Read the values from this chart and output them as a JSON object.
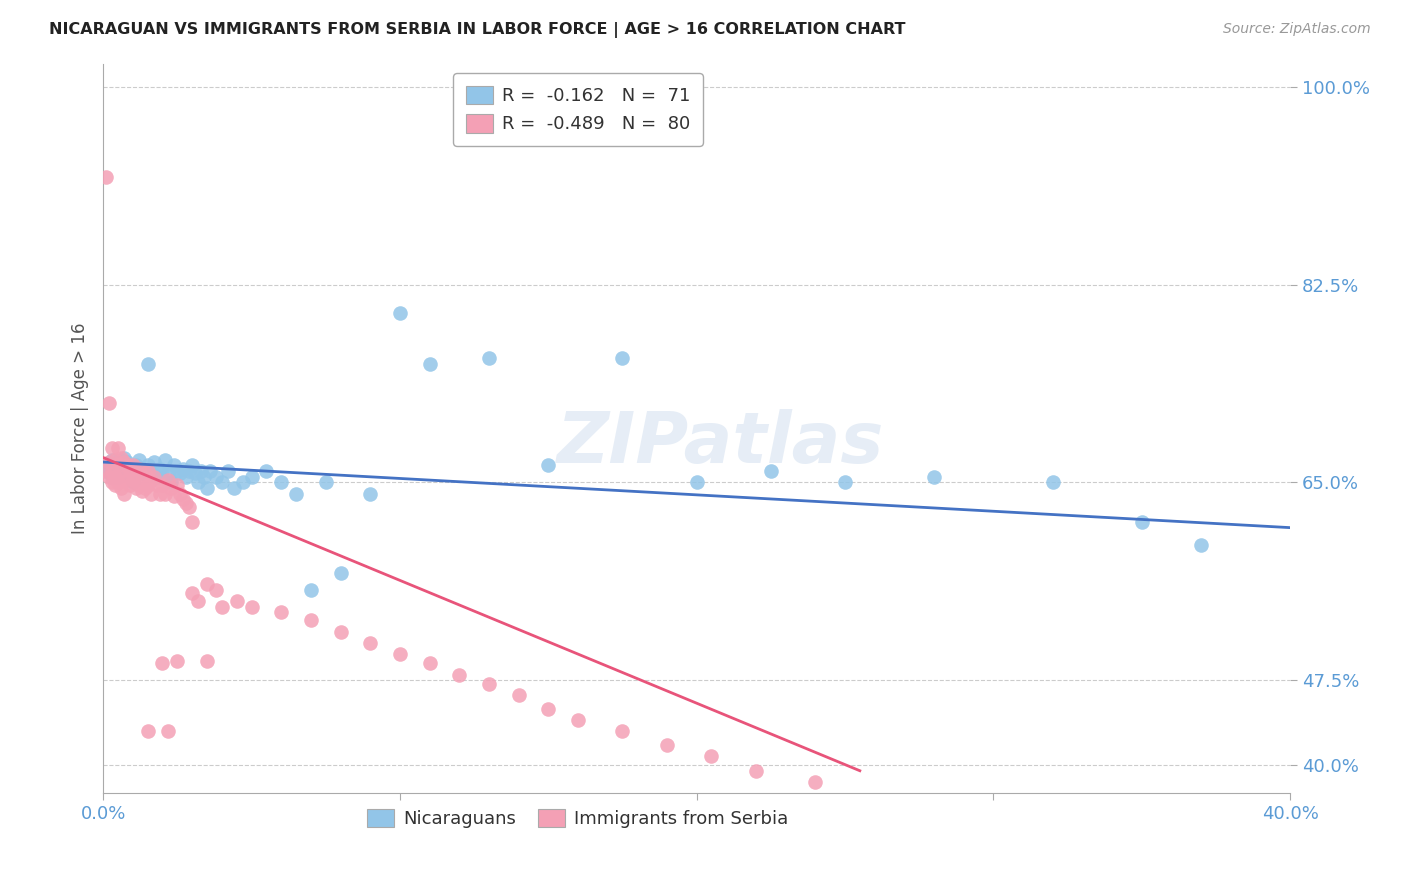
{
  "title": "NICARAGUAN VS IMMIGRANTS FROM SERBIA IN LABOR FORCE | AGE > 16 CORRELATION CHART",
  "source": "Source: ZipAtlas.com",
  "ylabel": "In Labor Force | Age > 16",
  "xlim": [
    0.0,
    0.4
  ],
  "ylim": [
    0.375,
    1.02
  ],
  "ytick_positions": [
    0.4,
    0.475,
    0.65,
    0.825,
    1.0
  ],
  "ytick_labels": [
    "40.0%",
    "47.5%",
    "65.0%",
    "82.5%",
    "100.0%"
  ],
  "xtick_positions": [
    0.0,
    0.1,
    0.2,
    0.3,
    0.4
  ],
  "xtick_labels": [
    "0.0%",
    "",
    "",
    "",
    "40.0%"
  ],
  "nic_color": "#92C5E8",
  "serbia_color": "#F4A0B5",
  "nic_line_color": "#4472C4",
  "serbia_line_color": "#E8547A",
  "grid_color": "#CCCCCC",
  "tick_color": "#5B9BD5",
  "background_color": "#FFFFFF",
  "watermark": "ZIPatlas",
  "nic_scatter_x": [
    0.001,
    0.002,
    0.002,
    0.003,
    0.003,
    0.004,
    0.004,
    0.005,
    0.005,
    0.006,
    0.006,
    0.007,
    0.007,
    0.008,
    0.008,
    0.009,
    0.01,
    0.01,
    0.011,
    0.012,
    0.012,
    0.013,
    0.014,
    0.015,
    0.015,
    0.016,
    0.017,
    0.018,
    0.019,
    0.02,
    0.021,
    0.022,
    0.023,
    0.024,
    0.025,
    0.026,
    0.027,
    0.028,
    0.029,
    0.03,
    0.031,
    0.032,
    0.033,
    0.034,
    0.035,
    0.036,
    0.038,
    0.04,
    0.042,
    0.044,
    0.047,
    0.05,
    0.055,
    0.06,
    0.065,
    0.07,
    0.075,
    0.08,
    0.09,
    0.1,
    0.11,
    0.13,
    0.15,
    0.175,
    0.2,
    0.225,
    0.25,
    0.28,
    0.32,
    0.35,
    0.37
  ],
  "nic_scatter_y": [
    0.66,
    0.665,
    0.66,
    0.67,
    0.655,
    0.66,
    0.665,
    0.668,
    0.655,
    0.662,
    0.67,
    0.658,
    0.672,
    0.66,
    0.668,
    0.655,
    0.66,
    0.65,
    0.665,
    0.66,
    0.67,
    0.658,
    0.66,
    0.755,
    0.665,
    0.66,
    0.668,
    0.655,
    0.662,
    0.66,
    0.67,
    0.658,
    0.65,
    0.665,
    0.66,
    0.658,
    0.662,
    0.655,
    0.66,
    0.665,
    0.658,
    0.65,
    0.66,
    0.655,
    0.645,
    0.66,
    0.655,
    0.65,
    0.66,
    0.645,
    0.65,
    0.655,
    0.66,
    0.65,
    0.64,
    0.555,
    0.65,
    0.57,
    0.64,
    0.8,
    0.755,
    0.76,
    0.665,
    0.76,
    0.65,
    0.66,
    0.65,
    0.655,
    0.65,
    0.615,
    0.595
  ],
  "serbia_scatter_x": [
    0.001,
    0.001,
    0.002,
    0.002,
    0.002,
    0.003,
    0.003,
    0.003,
    0.004,
    0.004,
    0.004,
    0.005,
    0.005,
    0.005,
    0.006,
    0.006,
    0.006,
    0.007,
    0.007,
    0.007,
    0.008,
    0.008,
    0.009,
    0.009,
    0.01,
    0.01,
    0.011,
    0.011,
    0.012,
    0.012,
    0.013,
    0.013,
    0.014,
    0.014,
    0.015,
    0.015,
    0.016,
    0.016,
    0.017,
    0.018,
    0.019,
    0.02,
    0.021,
    0.022,
    0.023,
    0.024,
    0.025,
    0.026,
    0.027,
    0.028,
    0.029,
    0.03,
    0.032,
    0.035,
    0.038,
    0.04,
    0.045,
    0.05,
    0.06,
    0.07,
    0.08,
    0.09,
    0.1,
    0.11,
    0.12,
    0.13,
    0.14,
    0.15,
    0.16,
    0.175,
    0.19,
    0.205,
    0.22,
    0.24,
    0.02,
    0.025,
    0.03,
    0.035,
    0.015,
    0.022
  ],
  "serbia_scatter_y": [
    0.92,
    0.66,
    0.72,
    0.668,
    0.655,
    0.68,
    0.66,
    0.65,
    0.67,
    0.655,
    0.648,
    0.68,
    0.665,
    0.65,
    0.672,
    0.66,
    0.645,
    0.668,
    0.655,
    0.64,
    0.665,
    0.652,
    0.66,
    0.648,
    0.665,
    0.652,
    0.658,
    0.645,
    0.662,
    0.648,
    0.655,
    0.642,
    0.658,
    0.645,
    0.66,
    0.648,
    0.652,
    0.64,
    0.655,
    0.648,
    0.64,
    0.648,
    0.64,
    0.652,
    0.645,
    0.638,
    0.648,
    0.64,
    0.635,
    0.632,
    0.628,
    0.552,
    0.545,
    0.56,
    0.555,
    0.54,
    0.545,
    0.54,
    0.535,
    0.528,
    0.518,
    0.508,
    0.498,
    0.49,
    0.48,
    0.472,
    0.462,
    0.45,
    0.44,
    0.43,
    0.418,
    0.408,
    0.395,
    0.385,
    0.49,
    0.492,
    0.615,
    0.492,
    0.43,
    0.43
  ],
  "nic_line_x": [
    0.0,
    0.4
  ],
  "nic_line_y": [
    0.668,
    0.61
  ],
  "serbia_line_x": [
    0.0,
    0.255
  ],
  "serbia_line_y": [
    0.672,
    0.395
  ]
}
